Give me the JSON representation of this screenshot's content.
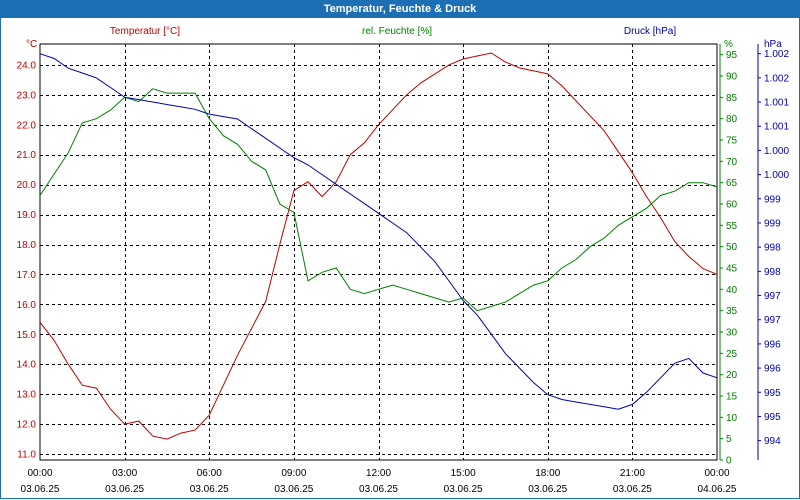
{
  "window": {
    "title": "Temperatur, Feuchte & Druck"
  },
  "colors": {
    "temperature": "#c00000",
    "humidity": "#008000",
    "pressure": "#0000b0",
    "grid": "#000000",
    "title_bar": "#1c6fb3"
  },
  "chart_data": {
    "type": "line",
    "title": "Temperatur, Feuchte & Druck",
    "xlabel": "",
    "grid": true,
    "x_ticks": [
      {
        "time": "00:00",
        "date": "03.06.25"
      },
      {
        "time": "03:00",
        "date": "03.06.25"
      },
      {
        "time": "06:00",
        "date": "03.06.25"
      },
      {
        "time": "09:00",
        "date": "03.06.25"
      },
      {
        "time": "12:00",
        "date": "03.06.25"
      },
      {
        "time": "15:00",
        "date": "03.06.25"
      },
      {
        "time": "18:00",
        "date": "03.06.25"
      },
      {
        "time": "21:00",
        "date": "03.06.25"
      },
      {
        "time": "00:00",
        "date": "04.06.25"
      }
    ],
    "xlim_hours": [
      0,
      24
    ],
    "axes": {
      "temperature": {
        "unit": "°C",
        "ylim": [
          10.8,
          24.7
        ],
        "ticks": [
          "11.0",
          "12.0",
          "13.0",
          "14.0",
          "15.0",
          "16.0",
          "17.0",
          "18.0",
          "19.0",
          "20.0",
          "21.0",
          "22.0",
          "23.0",
          "24.0"
        ]
      },
      "humidity": {
        "unit": "%",
        "ylim": [
          0,
          97.5
        ],
        "ticks": [
          "0",
          "5",
          "10",
          "15",
          "20",
          "25",
          "30",
          "35",
          "40",
          "45",
          "50",
          "55",
          "60",
          "65",
          "70",
          "75",
          "80",
          "85",
          "90",
          "95"
        ]
      },
      "pressure": {
        "unit": "hPa",
        "ylim": [
          993.6,
          1002.2
        ],
        "ticks": [
          "994",
          "995",
          "995",
          "996",
          "996",
          "997",
          "997",
          "998",
          "998",
          "999",
          "999",
          "1.000",
          "1.000",
          "1.001",
          "1.001",
          "1.002",
          "1.002"
        ]
      }
    },
    "series": [
      {
        "name": "Temperatur [°C]",
        "color": "#c00000",
        "axis": "temperature",
        "x": [
          0,
          0.5,
          1,
          1.5,
          2,
          2.5,
          3,
          3.5,
          4,
          4.5,
          5,
          5.5,
          6,
          6.5,
          7,
          7.5,
          8,
          8.5,
          9,
          9.5,
          10,
          10.5,
          11,
          11.5,
          12,
          12.5,
          13,
          13.5,
          14,
          14.5,
          15,
          15.5,
          16,
          16.5,
          17,
          17.5,
          18,
          18.5,
          19,
          19.5,
          20,
          20.5,
          21,
          21.5,
          22,
          22.5,
          23,
          23.5,
          24
        ],
        "values": [
          15.4,
          14.8,
          14.0,
          13.3,
          13.2,
          12.5,
          12.0,
          12.1,
          11.6,
          11.5,
          11.7,
          11.8,
          12.3,
          13.3,
          14.3,
          15.2,
          16.1,
          18.0,
          19.8,
          20.1,
          19.6,
          20.1,
          21.0,
          21.4,
          22.0,
          22.5,
          23.0,
          23.4,
          23.7,
          24.0,
          24.2,
          24.3,
          24.4,
          24.1,
          23.9,
          23.8,
          23.7,
          23.3,
          22.8,
          22.3,
          21.8,
          21.1,
          20.4,
          19.6,
          18.9,
          18.1,
          17.6,
          17.2,
          17.0
        ]
      },
      {
        "name": "rel. Feuchte [%]",
        "color": "#008000",
        "axis": "humidity",
        "x": [
          0,
          0.5,
          1,
          1.5,
          2,
          2.5,
          3,
          3.5,
          4,
          4.5,
          5,
          5.5,
          6,
          6.5,
          7,
          7.5,
          8,
          8.5,
          9,
          9.5,
          10,
          10.5,
          11,
          11.5,
          12,
          12.5,
          13,
          13.5,
          14,
          14.5,
          15,
          15.5,
          16,
          16.5,
          17,
          17.5,
          18,
          18.5,
          19,
          19.5,
          20,
          20.5,
          21,
          21.5,
          22,
          22.5,
          23,
          23.5,
          24
        ],
        "values": [
          62,
          67,
          72,
          79,
          80,
          82,
          85,
          84,
          87,
          86,
          86,
          86,
          80,
          76,
          74,
          70,
          68,
          60,
          58,
          42,
          44,
          45,
          40,
          39,
          40,
          41,
          40,
          39,
          38,
          37,
          38,
          35,
          36,
          37,
          39,
          41,
          42,
          45,
          47,
          50,
          52,
          55,
          57,
          59,
          62,
          63,
          65,
          65,
          64
        ]
      },
      {
        "name": "Druck [hPa]",
        "color": "#0000b0",
        "axis": "pressure",
        "x": [
          0,
          0.5,
          1,
          1.5,
          2,
          2.5,
          3,
          3.5,
          4,
          4.5,
          5,
          5.5,
          6,
          6.5,
          7,
          7.5,
          8,
          8.5,
          9,
          9.5,
          10,
          10.5,
          11,
          11.5,
          12,
          12.5,
          13,
          13.5,
          14,
          14.5,
          15,
          15.5,
          16,
          16.5,
          17,
          17.5,
          18,
          18.5,
          19,
          19.5,
          20,
          20.5,
          21,
          21.5,
          22,
          22.5,
          23,
          23.5,
          24
        ],
        "values": [
          1002.0,
          1001.9,
          1001.7,
          1001.6,
          1001.5,
          1001.3,
          1001.1,
          1001.05,
          1001.0,
          1000.95,
          1000.9,
          1000.85,
          1000.75,
          1000.7,
          1000.65,
          1000.45,
          1000.25,
          1000.05,
          999.85,
          999.7,
          999.5,
          999.3,
          999.1,
          998.9,
          998.7,
          998.5,
          998.3,
          998.0,
          997.7,
          997.3,
          996.9,
          996.6,
          996.2,
          995.8,
          995.5,
          995.2,
          994.95,
          994.85,
          994.8,
          994.75,
          994.7,
          994.65,
          994.75,
          995.0,
          995.3,
          995.6,
          995.7,
          995.4,
          995.3
        ]
      }
    ]
  }
}
